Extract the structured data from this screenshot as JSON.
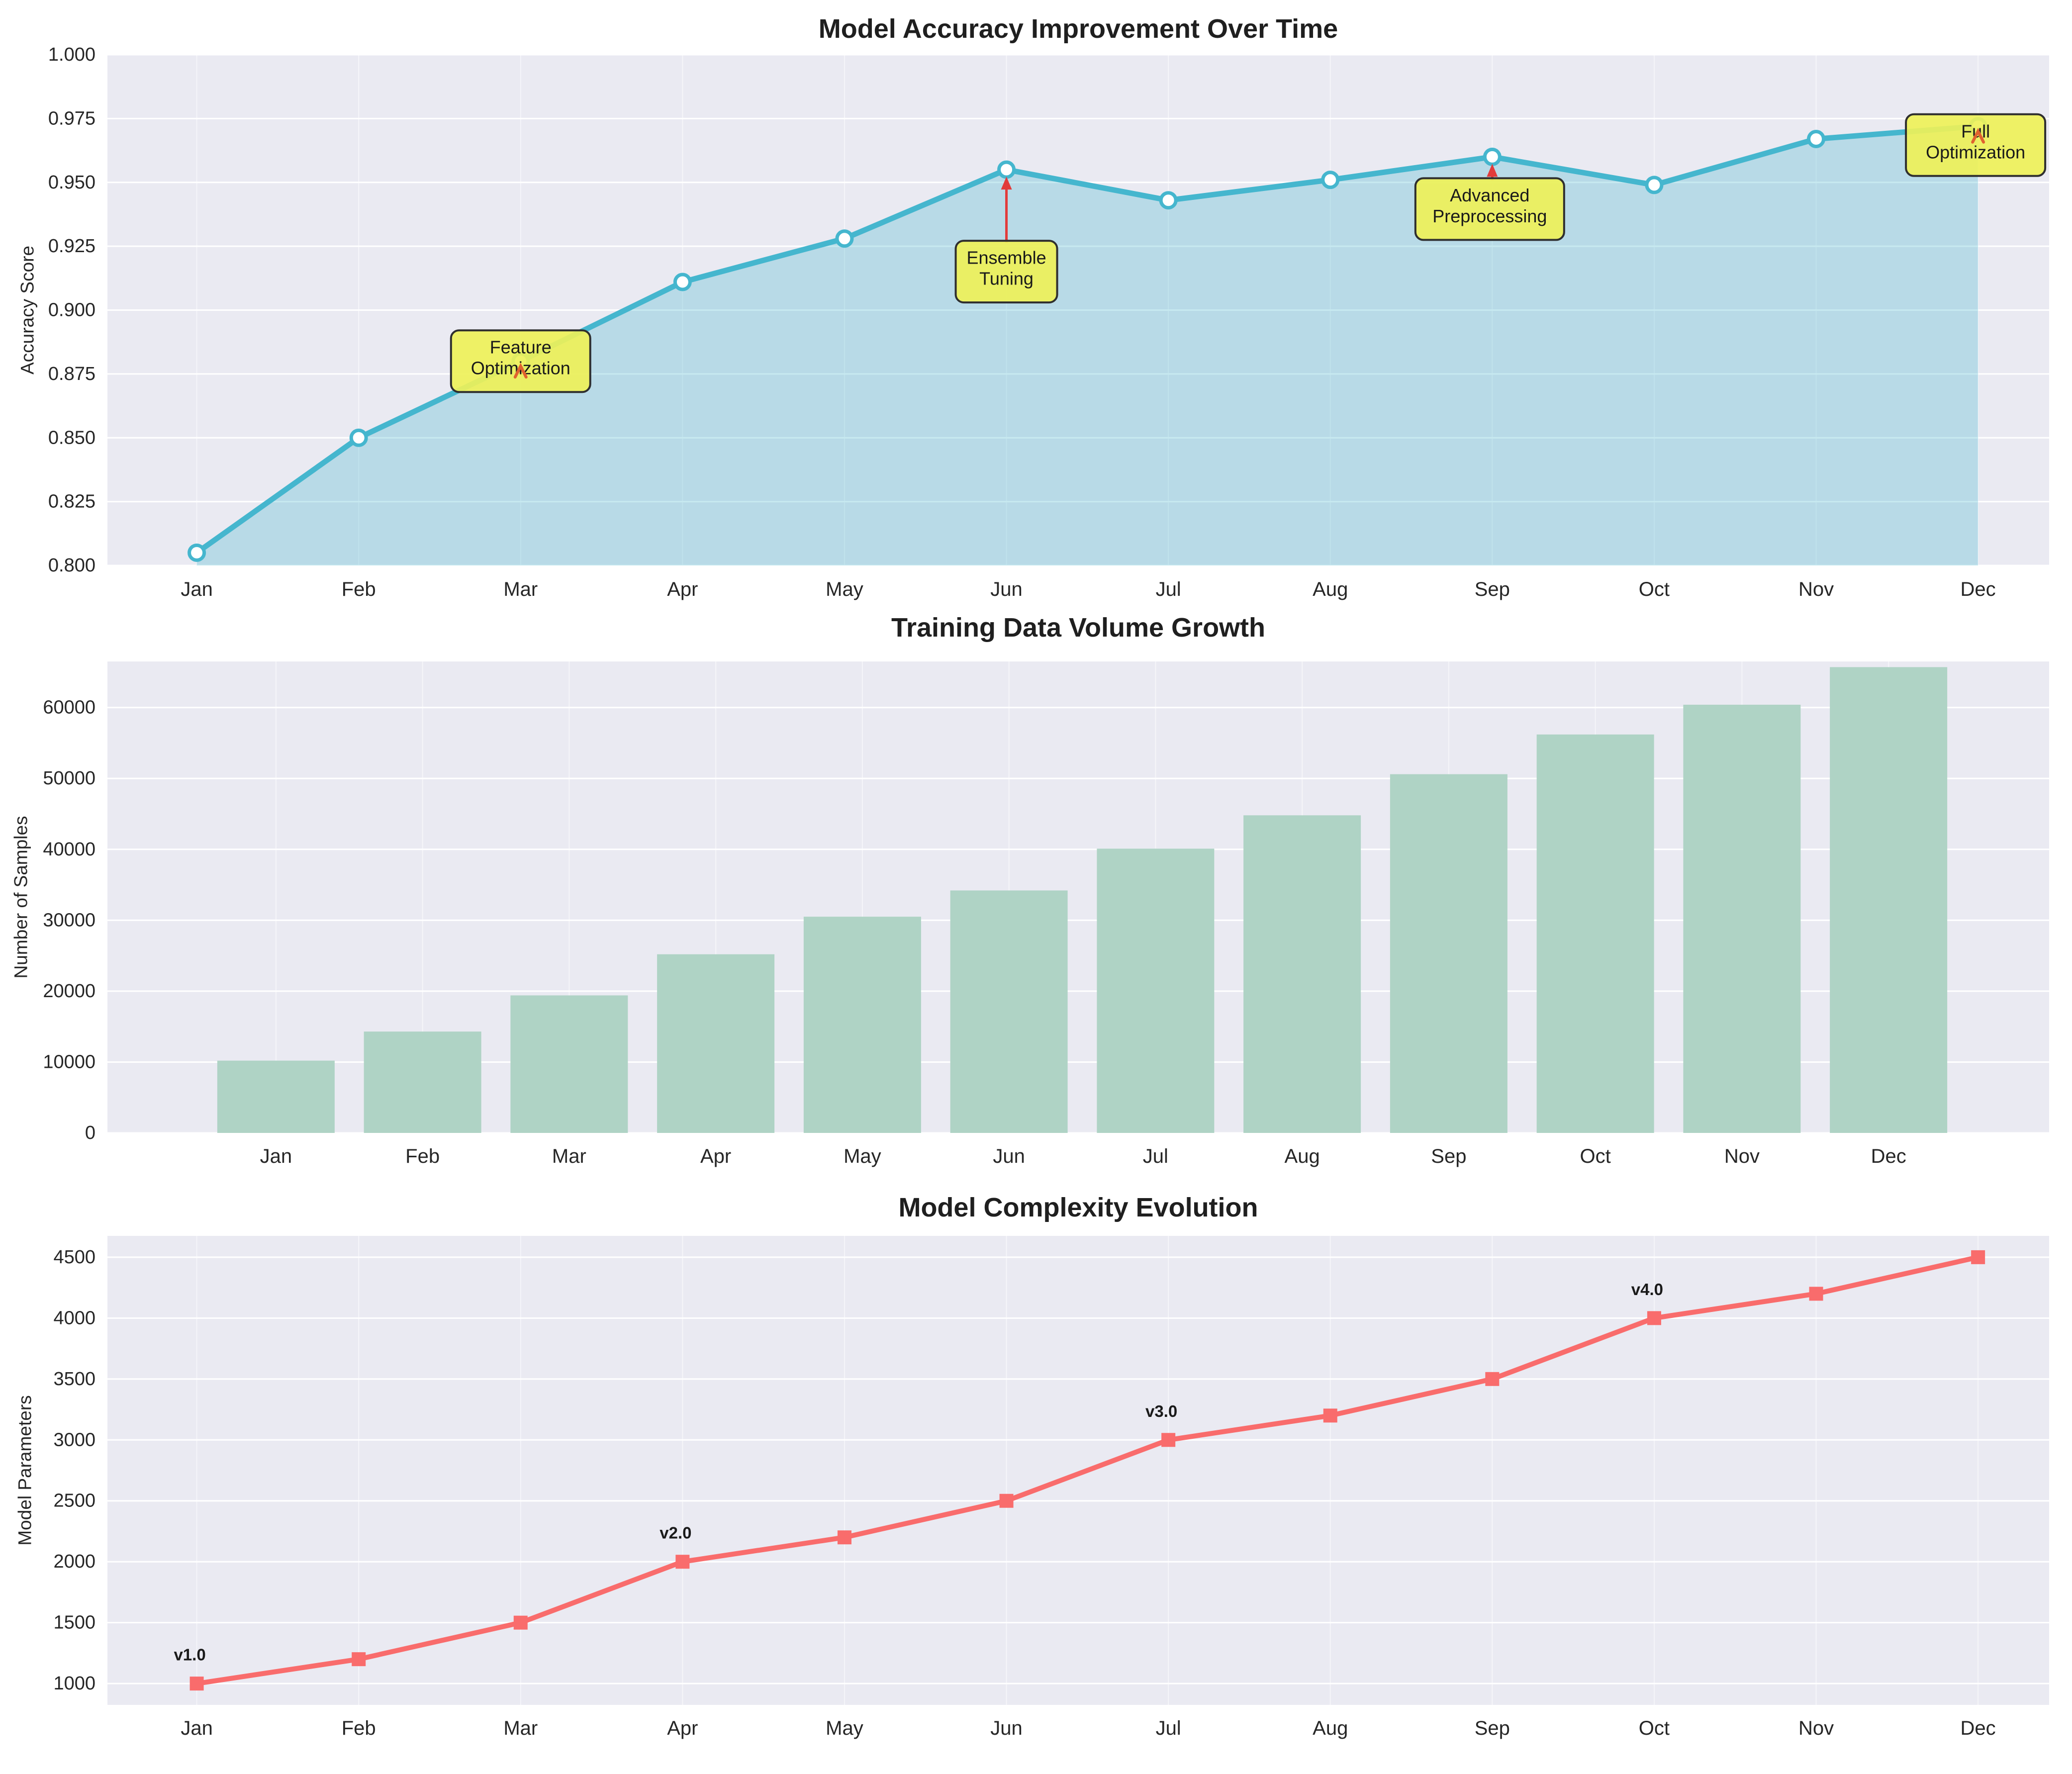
{
  "figure": {
    "background": "#ffffff",
    "axes_background": "#eaeaf2",
    "grid_color": "#ffffff",
    "tick_label_color": "#262626",
    "title_color": "#1f1f1f",
    "months": [
      "Jan",
      "Feb",
      "Mar",
      "Apr",
      "May",
      "Jun",
      "Jul",
      "Aug",
      "Sep",
      "Oct",
      "Nov",
      "Dec"
    ]
  },
  "chart_data": [
    {
      "type": "area",
      "title": "Model Accuracy Improvement Over Time",
      "ylabel": "Accuracy Score",
      "xlabel": "",
      "categories": [
        "Jan",
        "Feb",
        "Mar",
        "Apr",
        "May",
        "Jun",
        "Jul",
        "Aug",
        "Sep",
        "Oct",
        "Nov",
        "Dec"
      ],
      "values": [
        0.805,
        0.85,
        0.88,
        0.911,
        0.928,
        0.955,
        0.943,
        0.951,
        0.96,
        0.949,
        0.967,
        0.972
      ],
      "ylim": [
        0.8,
        1.0
      ],
      "yticks": [
        {
          "v": 0.8,
          "label": "0.800"
        },
        {
          "v": 0.825,
          "label": "0.825"
        },
        {
          "v": 0.85,
          "label": "0.850"
        },
        {
          "v": 0.875,
          "label": "0.875"
        },
        {
          "v": 0.9,
          "label": "0.900"
        },
        {
          "v": 0.925,
          "label": "0.925"
        },
        {
          "v": 0.95,
          "label": "0.950"
        },
        {
          "v": 0.975,
          "label": "0.975"
        },
        {
          "v": 1.0,
          "label": "1.000"
        }
      ],
      "grid": true,
      "legend": "none",
      "line_color": "#45b6ce",
      "fill_color": "rgba(69,182,206,0.30)",
      "marker": "circle-white",
      "annotation_box_color": "#eef159",
      "annotation_border_color": "#2f2f2f",
      "annotation_arrow_color": "#e23b3b",
      "annotation_caret_color": "#e0622f",
      "annotations": [
        {
          "text": "Feature\nOptimization",
          "month_index": 2,
          "point_value": 0.88,
          "box_dx": 0,
          "box_dy": 0,
          "arrow": "caret"
        },
        {
          "text": "Ensemble\nTuning",
          "month_index": 5,
          "point_value": 0.955,
          "box_dx": 0,
          "box_dy": 205,
          "arrow": "line"
        },
        {
          "text": "Advanced\nPreprocessing",
          "month_index": 8,
          "point_value": 0.96,
          "box_dx": -5,
          "box_dy": 105,
          "arrow": "line"
        },
        {
          "text": "Full\nOptimization",
          "month_index": 11,
          "point_value": 0.972,
          "box_dx": -5,
          "box_dy": 38,
          "arrow": "caret"
        }
      ]
    },
    {
      "type": "bar",
      "title": "Training Data Volume Growth",
      "ylabel": "Number of Samples",
      "xlabel": "",
      "categories": [
        "Jan",
        "Feb",
        "Mar",
        "Apr",
        "May",
        "Jun",
        "Jul",
        "Aug",
        "Sep",
        "Oct",
        "Nov",
        "Dec"
      ],
      "values": [
        10200,
        14300,
        19400,
        25200,
        30500,
        34200,
        40100,
        44800,
        50600,
        56200,
        60400,
        65700
      ],
      "ylim": [
        0,
        66500
      ],
      "yticks": [
        {
          "v": 0,
          "label": "0"
        },
        {
          "v": 10000,
          "label": "10000"
        },
        {
          "v": 20000,
          "label": "20000"
        },
        {
          "v": 30000,
          "label": "30000"
        },
        {
          "v": 40000,
          "label": "40000"
        },
        {
          "v": 50000,
          "label": "50000"
        },
        {
          "v": 60000,
          "label": "60000"
        }
      ],
      "grid": true,
      "legend": "none",
      "bar_color": "#afd3c5"
    },
    {
      "type": "line",
      "title": "Model Complexity Evolution",
      "ylabel": "Model Parameters",
      "xlabel": "",
      "categories": [
        "Jan",
        "Feb",
        "Mar",
        "Apr",
        "May",
        "Jun",
        "Jul",
        "Aug",
        "Sep",
        "Oct",
        "Nov",
        "Dec"
      ],
      "values": [
        1000,
        1200,
        1500,
        2000,
        2200,
        2500,
        3000,
        3200,
        3500,
        4000,
        4200,
        4500
      ],
      "ylim": [
        825,
        4675
      ],
      "yticks": [
        {
          "v": 1000,
          "label": "1000"
        },
        {
          "v": 1500,
          "label": "1500"
        },
        {
          "v": 2000,
          "label": "2000"
        },
        {
          "v": 2500,
          "label": "2500"
        },
        {
          "v": 3000,
          "label": "3000"
        },
        {
          "v": 3500,
          "label": "3500"
        },
        {
          "v": 4000,
          "label": "4000"
        },
        {
          "v": 4500,
          "label": "4500"
        }
      ],
      "grid": true,
      "legend": "none",
      "line_color": "#f96c6c",
      "marker": "square",
      "version_labels": [
        {
          "text": "v1.0",
          "month_index": 0
        },
        {
          "text": "v2.0",
          "month_index": 3
        },
        {
          "text": "v3.0",
          "month_index": 6
        },
        {
          "text": "v4.0",
          "month_index": 9
        }
      ]
    }
  ]
}
